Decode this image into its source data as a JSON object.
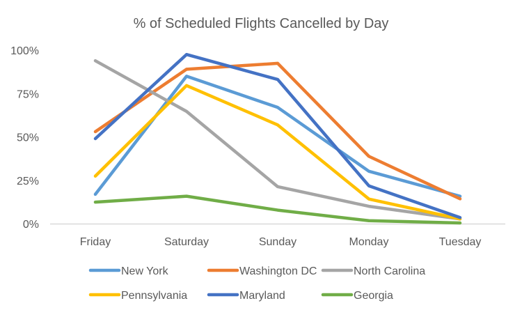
{
  "chart_data": {
    "type": "line",
    "title": "% of Scheduled Flights Cancelled by Day",
    "xlabel": "",
    "ylabel": "",
    "categories": [
      "Friday",
      "Saturday",
      "Sunday",
      "Monday",
      "Tuesday"
    ],
    "ylim": [
      0,
      100
    ],
    "yticks": [
      0,
      25,
      50,
      75,
      100
    ],
    "ytick_labels": [
      "0%",
      "25%",
      "50%",
      "75%",
      "100%"
    ],
    "grid": false,
    "legend_position": "bottom",
    "series": [
      {
        "name": "New York",
        "color": "#5B9BD5",
        "values": [
          16.9,
          85,
          67,
          30.2,
          15.8
        ]
      },
      {
        "name": "Washington DC",
        "color": "#ED7D31",
        "values": [
          53,
          89,
          92.4,
          38.8,
          14.3
        ]
      },
      {
        "name": "North Carolina",
        "color": "#A5A5A5",
        "values": [
          93.9,
          64.7,
          21.3,
          10,
          2.7
        ]
      },
      {
        "name": "Pennsylvania",
        "color": "#FFC000",
        "values": [
          27.4,
          79.6,
          56.9,
          14.2,
          2.7
        ]
      },
      {
        "name": "Maryland",
        "color": "#4472C4",
        "values": [
          49,
          97.5,
          83.1,
          21.8,
          3.5
        ]
      },
      {
        "name": "Georgia",
        "color": "#70AD47",
        "values": [
          12.4,
          15.8,
          7.8,
          1.7,
          0.4
        ]
      }
    ]
  }
}
